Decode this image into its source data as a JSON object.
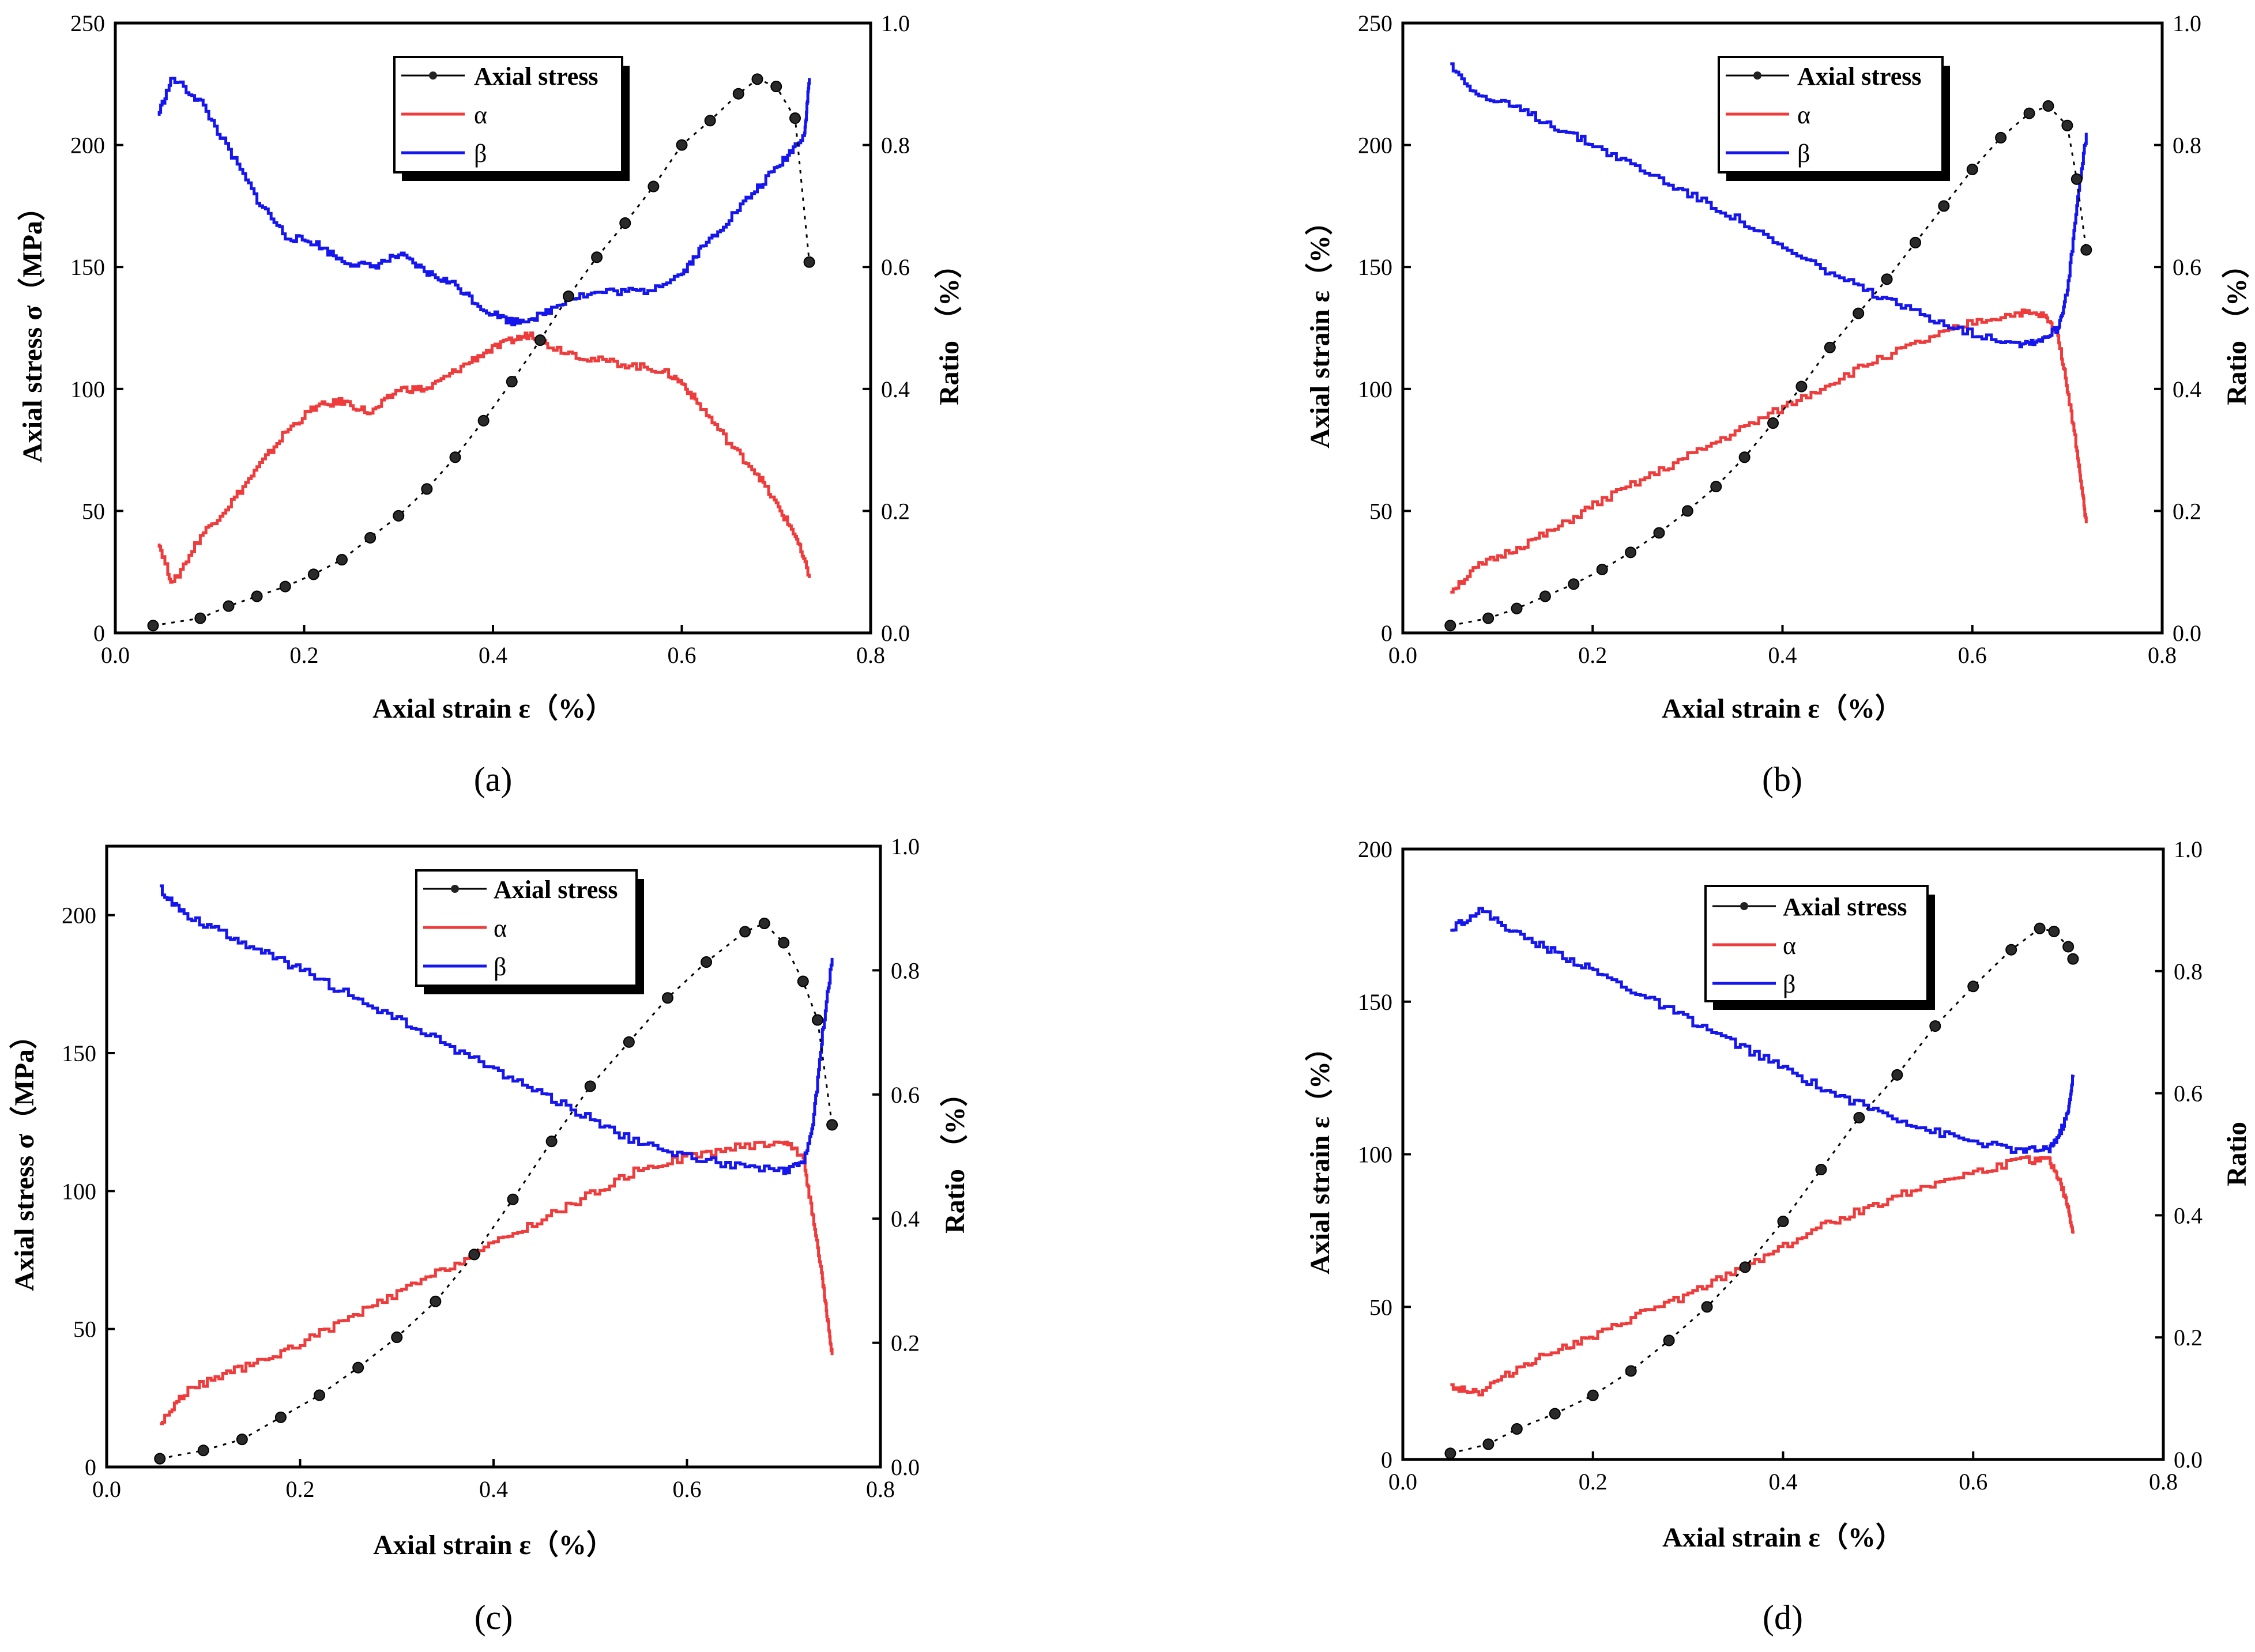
{
  "chart_data": [
    {
      "panel": "a",
      "caption": "(a)",
      "type": "line",
      "xlabel": "Axial strain ε（%）",
      "ylabel_left": "Axial stress σ（MPa）",
      "ylabel_right": "Ratio （%）",
      "xlim": [
        0,
        0.8
      ],
      "ylim_left": [
        0,
        250
      ],
      "ylim_right": [
        0,
        1.0
      ],
      "x_ticks": [
        "0.0",
        "0.2",
        "0.4",
        "0.6",
        "0.8"
      ],
      "left_ticks": [
        "0",
        "50",
        "100",
        "150",
        "200",
        "250"
      ],
      "right_ticks": [
        "0.0",
        "0.2",
        "0.4",
        "0.6",
        "0.8",
        "1.0"
      ],
      "legend": [
        "Axial stress",
        "α",
        "β"
      ],
      "series": [
        {
          "name": "Axial stress",
          "axis": "left",
          "color": "#000000",
          "x": [
            0.04,
            0.09,
            0.12,
            0.15,
            0.18,
            0.21,
            0.24,
            0.27,
            0.3,
            0.33,
            0.36,
            0.39,
            0.42,
            0.45,
            0.48,
            0.51,
            0.54,
            0.57,
            0.6,
            0.63,
            0.66,
            0.68,
            0.7,
            0.72,
            0.735
          ],
          "y": [
            3,
            6,
            11,
            15,
            19,
            24,
            30,
            39,
            48,
            59,
            72,
            87,
            103,
            120,
            138,
            154,
            168,
            183,
            200,
            210,
            221,
            227,
            224,
            211,
            152
          ]
        },
        {
          "name": "α",
          "axis": "right",
          "color": "#ee3b3b",
          "x": [
            0.045,
            0.06,
            0.09,
            0.12,
            0.15,
            0.18,
            0.21,
            0.24,
            0.27,
            0.3,
            0.33,
            0.36,
            0.39,
            0.42,
            0.44,
            0.46,
            0.5,
            0.54,
            0.58,
            0.6,
            0.62,
            0.65,
            0.68,
            0.7,
            0.72,
            0.735
          ],
          "y": [
            0.15,
            0.08,
            0.16,
            0.21,
            0.27,
            0.33,
            0.37,
            0.38,
            0.36,
            0.4,
            0.4,
            0.43,
            0.46,
            0.48,
            0.49,
            0.47,
            0.45,
            0.44,
            0.43,
            0.41,
            0.37,
            0.31,
            0.26,
            0.21,
            0.16,
            0.09
          ]
        },
        {
          "name": "β",
          "axis": "right",
          "color": "#1515ee",
          "x": [
            0.045,
            0.06,
            0.09,
            0.12,
            0.15,
            0.18,
            0.21,
            0.24,
            0.27,
            0.3,
            0.33,
            0.36,
            0.39,
            0.42,
            0.45,
            0.48,
            0.52,
            0.56,
            0.6,
            0.62,
            0.65,
            0.68,
            0.71,
            0.73,
            0.735
          ],
          "y": [
            0.85,
            0.91,
            0.87,
            0.79,
            0.71,
            0.65,
            0.64,
            0.61,
            0.6,
            0.62,
            0.59,
            0.57,
            0.53,
            0.51,
            0.52,
            0.55,
            0.56,
            0.56,
            0.59,
            0.63,
            0.68,
            0.73,
            0.78,
            0.82,
            0.91
          ]
        }
      ]
    },
    {
      "panel": "b",
      "caption": "(b)",
      "type": "line",
      "xlabel": "Axial strain ε（%）",
      "ylabel_left": "Axial strain ε（%）",
      "ylabel_right": "Ratio （%）",
      "xlim": [
        0,
        0.8
      ],
      "ylim_left": [
        0,
        250
      ],
      "ylim_right": [
        0,
        1.0
      ],
      "x_ticks": [
        "0.0",
        "0.2",
        "0.4",
        "0.6",
        "0.8"
      ],
      "left_ticks": [
        "0",
        "50",
        "100",
        "150",
        "200",
        "250"
      ],
      "right_ticks": [
        "0.0",
        "0.2",
        "0.4",
        "0.6",
        "0.8",
        "1.0"
      ],
      "legend": [
        "Axial stress",
        "α",
        "β"
      ],
      "series": [
        {
          "name": "Axial stress",
          "axis": "left",
          "color": "#000000",
          "x": [
            0.05,
            0.09,
            0.12,
            0.15,
            0.18,
            0.21,
            0.24,
            0.27,
            0.3,
            0.33,
            0.36,
            0.39,
            0.42,
            0.45,
            0.48,
            0.51,
            0.54,
            0.57,
            0.6,
            0.63,
            0.66,
            0.68,
            0.7,
            0.71,
            0.72
          ],
          "y": [
            3,
            6,
            10,
            15,
            20,
            26,
            33,
            41,
            50,
            60,
            72,
            86,
            101,
            117,
            131,
            145,
            160,
            175,
            190,
            203,
            213,
            216,
            208,
            186,
            157
          ]
        },
        {
          "name": "α",
          "axis": "right",
          "color": "#ee3b3b",
          "x": [
            0.05,
            0.08,
            0.12,
            0.16,
            0.2,
            0.25,
            0.3,
            0.35,
            0.4,
            0.45,
            0.5,
            0.55,
            0.6,
            0.65,
            0.675,
            0.69,
            0.7,
            0.71,
            0.715,
            0.72
          ],
          "y": [
            0.07,
            0.11,
            0.14,
            0.17,
            0.21,
            0.25,
            0.29,
            0.33,
            0.37,
            0.41,
            0.45,
            0.48,
            0.51,
            0.525,
            0.52,
            0.49,
            0.4,
            0.3,
            0.24,
            0.18
          ]
        },
        {
          "name": "β",
          "axis": "right",
          "color": "#1515ee",
          "x": [
            0.05,
            0.08,
            0.12,
            0.16,
            0.2,
            0.25,
            0.3,
            0.35,
            0.4,
            0.45,
            0.5,
            0.55,
            0.6,
            0.65,
            0.67,
            0.69,
            0.7,
            0.71,
            0.72
          ],
          "y": [
            0.93,
            0.88,
            0.86,
            0.83,
            0.8,
            0.76,
            0.72,
            0.68,
            0.63,
            0.59,
            0.55,
            0.52,
            0.49,
            0.475,
            0.48,
            0.5,
            0.56,
            0.7,
            0.82
          ]
        }
      ]
    },
    {
      "panel": "c",
      "caption": "(c)",
      "type": "line",
      "xlabel": "Axial strain ε（%）",
      "ylabel_left": "Axial stress σ（MPa）",
      "ylabel_right": "Ratio （%）",
      "xlim": [
        0,
        0.8
      ],
      "ylim_left": [
        0,
        225
      ],
      "ylim_right": [
        0,
        1.0
      ],
      "x_ticks": [
        "0.0",
        "0.2",
        "0.4",
        "0.6",
        "0.8"
      ],
      "left_ticks": [
        "0",
        "50",
        "100",
        "150",
        "200"
      ],
      "right_ticks": [
        "0.0",
        "0.2",
        "0.4",
        "0.6",
        "0.8",
        "1.0"
      ],
      "legend": [
        "Axial stress",
        "α",
        "β"
      ],
      "series": [
        {
          "name": "Axial stress",
          "axis": "left",
          "color": "#000000",
          "x": [
            0.055,
            0.1,
            0.14,
            0.18,
            0.22,
            0.26,
            0.3,
            0.34,
            0.38,
            0.42,
            0.46,
            0.5,
            0.54,
            0.58,
            0.62,
            0.66,
            0.68,
            0.7,
            0.72,
            0.735,
            0.75
          ],
          "y": [
            3,
            6,
            10,
            18,
            26,
            36,
            47,
            60,
            77,
            97,
            118,
            138,
            154,
            170,
            183,
            194,
            197,
            190,
            176,
            162,
            124
          ]
        },
        {
          "name": "α",
          "axis": "right",
          "color": "#ee3b3b",
          "x": [
            0.055,
            0.08,
            0.12,
            0.16,
            0.2,
            0.25,
            0.3,
            0.35,
            0.4,
            0.45,
            0.5,
            0.55,
            0.6,
            0.65,
            0.7,
            0.72,
            0.73,
            0.74,
            0.745,
            0.75
          ],
          "y": [
            0.07,
            0.12,
            0.15,
            0.17,
            0.2,
            0.24,
            0.28,
            0.32,
            0.36,
            0.4,
            0.44,
            0.48,
            0.5,
            0.515,
            0.525,
            0.5,
            0.4,
            0.3,
            0.24,
            0.18
          ]
        },
        {
          "name": "β",
          "axis": "right",
          "color": "#1515ee",
          "x": [
            0.055,
            0.08,
            0.12,
            0.16,
            0.2,
            0.25,
            0.3,
            0.35,
            0.4,
            0.45,
            0.5,
            0.55,
            0.6,
            0.65,
            0.7,
            0.72,
            0.73,
            0.74,
            0.75
          ],
          "y": [
            0.93,
            0.89,
            0.86,
            0.83,
            0.8,
            0.76,
            0.72,
            0.68,
            0.64,
            0.6,
            0.56,
            0.52,
            0.5,
            0.485,
            0.475,
            0.49,
            0.55,
            0.7,
            0.82
          ]
        }
      ]
    },
    {
      "panel": "d",
      "caption": "(d)",
      "type": "line",
      "xlabel": "Axial strain ε（%）",
      "ylabel_left": "Axial strain ε（%）",
      "ylabel_right": "Ratio",
      "xlim": [
        0,
        0.8
      ],
      "ylim_left": [
        0,
        200
      ],
      "ylim_right": [
        0,
        1.0
      ],
      "x_ticks": [
        "0.0",
        "0.2",
        "0.4",
        "0.6",
        "0.8"
      ],
      "left_ticks": [
        "0",
        "50",
        "100",
        "150",
        "200"
      ],
      "right_ticks": [
        "0.0",
        "0.2",
        "0.4",
        "0.6",
        "0.8",
        "1.0"
      ],
      "legend": [
        "Axial stress",
        "α",
        "β"
      ],
      "series": [
        {
          "name": "Axial stress",
          "axis": "left",
          "color": "#000000",
          "x": [
            0.05,
            0.09,
            0.12,
            0.16,
            0.2,
            0.24,
            0.28,
            0.32,
            0.36,
            0.4,
            0.44,
            0.48,
            0.52,
            0.56,
            0.6,
            0.64,
            0.67,
            0.685,
            0.7,
            0.705
          ],
          "y": [
            2,
            5,
            10,
            15,
            21,
            29,
            39,
            50,
            63,
            78,
            95,
            112,
            126,
            142,
            155,
            167,
            174,
            173,
            168,
            164
          ]
        },
        {
          "name": "α",
          "axis": "right",
          "color": "#ee3b3b",
          "x": [
            0.05,
            0.08,
            0.12,
            0.16,
            0.2,
            0.25,
            0.3,
            0.35,
            0.4,
            0.45,
            0.5,
            0.55,
            0.6,
            0.65,
            0.68,
            0.69,
            0.7,
            0.705
          ],
          "y": [
            0.12,
            0.11,
            0.15,
            0.18,
            0.2,
            0.24,
            0.27,
            0.31,
            0.35,
            0.39,
            0.42,
            0.45,
            0.47,
            0.49,
            0.49,
            0.46,
            0.41,
            0.37
          ]
        },
        {
          "name": "β",
          "axis": "right",
          "color": "#1515ee",
          "x": [
            0.05,
            0.08,
            0.12,
            0.16,
            0.2,
            0.25,
            0.3,
            0.35,
            0.4,
            0.45,
            0.5,
            0.55,
            0.6,
            0.65,
            0.68,
            0.69,
            0.7,
            0.705
          ],
          "y": [
            0.87,
            0.9,
            0.86,
            0.83,
            0.8,
            0.76,
            0.72,
            0.68,
            0.64,
            0.6,
            0.57,
            0.54,
            0.52,
            0.505,
            0.51,
            0.53,
            0.57,
            0.63
          ]
        }
      ]
    }
  ]
}
